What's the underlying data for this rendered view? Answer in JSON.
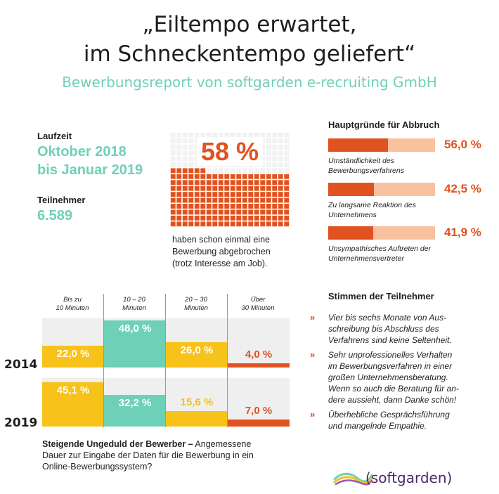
{
  "header": {
    "title_line1": "„Eiltempo erwartet,",
    "title_line2": "im Schneckentempo geliefert“",
    "subtitle": "Bewerbungsreport von softgarden e-recruiting GmbH"
  },
  "facts": {
    "runtime_label": "Laufzeit",
    "runtime_line1": "Oktober 2018",
    "runtime_line2": "bis Januar 2019",
    "participants_label": "Teilnehmer",
    "participants_value": "6.589"
  },
  "center": {
    "percent_label": "58 %",
    "percent_value": 58,
    "text_line1": "haben schon einmal eine",
    "text_line2": "Bewerbung abgebrochen",
    "text_line3": "(trotz Interesse am Job).",
    "colors": {
      "filled": "#e0521f",
      "empty": "#f2f2f2"
    }
  },
  "reasons": {
    "title": "Hauptgründe für Abbruch",
    "items": [
      {
        "value": 56.0,
        "value_label": "56,0 %",
        "line1": "Umständlichkeit des",
        "line2": "Bewerbungsverfahrens"
      },
      {
        "value": 42.5,
        "value_label": "42,5 %",
        "line1": "Zu langsame Reaktion des",
        "line2": "Unternehmens"
      },
      {
        "value": 41.9,
        "value_label": "41,9 %",
        "line1": "Unsympathisches Auftreten der",
        "line2": "Unternehmensvertreter"
      }
    ]
  },
  "chart_data": {
    "type": "bar",
    "categories": [
      {
        "line1": "Bis zu",
        "line2": "10 Minuten"
      },
      {
        "line1": "10 – 20",
        "line2": "Minuten"
      },
      {
        "line1": "20 – 30",
        "line2": "Minuten"
      },
      {
        "line1": "Über",
        "line2": "30 Minuten"
      }
    ],
    "series": [
      {
        "name": "2014",
        "values": [
          22.0,
          48.0,
          26.0,
          4.0
        ],
        "labels": [
          "22,0 %",
          "48,0 %",
          "26,0 %",
          "4,0 %"
        ]
      },
      {
        "name": "2019",
        "values": [
          45.1,
          32.2,
          15.6,
          7.0
        ],
        "labels": [
          "45,1 %",
          "32,2 %",
          "15,6 %",
          "7,0 %"
        ]
      }
    ],
    "colors": [
      "#f7c21a",
      "#6fd0b8",
      "#f7c21a",
      "#e0521f"
    ],
    "ylim": [
      0,
      50
    ],
    "caption_bold": "Steigende Ungeduld der Bewerber –",
    "caption_rest_1": " Angemessene",
    "caption_line2": "Dauer zur Eingabe der Daten für die Bewerbung in ein",
    "caption_line3": "Online-Bewerbungssystem?"
  },
  "voices": {
    "title": "Stimmen der Teilnehmer",
    "quotes": [
      {
        "lines": [
          "Vier bis sechs Monate von Aus-",
          "schreibung bis Abschluss des",
          "Verfahrens sind keine Seltenheit."
        ]
      },
      {
        "lines": [
          "Sehr unprofessionelles Verhalten",
          "im Bewerbungsverfahren in einer",
          "großen Unternehmensberatung.",
          "Wenn so auch die Beratung für an-",
          "dere aussieht, dann Danke schön!"
        ]
      },
      {
        "lines": [
          "Überhebliche Gesprächsführung",
          "und mangelnde Empathie."
        ]
      }
    ]
  },
  "logo": {
    "text": "softgarden"
  }
}
